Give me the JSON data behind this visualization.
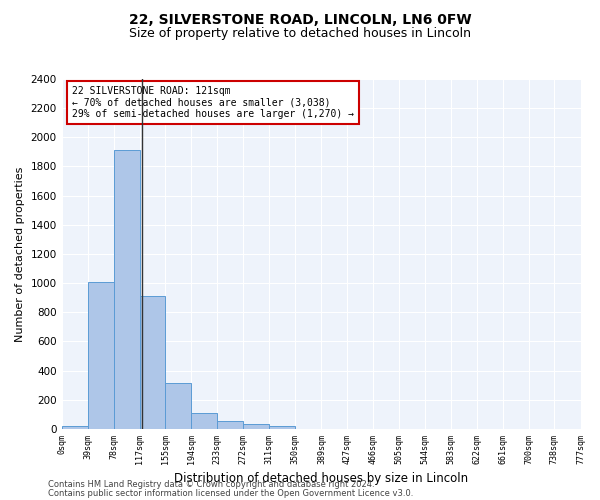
{
  "title1": "22, SILVERSTONE ROAD, LINCOLN, LN6 0FW",
  "title2": "Size of property relative to detached houses in Lincoln",
  "xlabel": "Distribution of detached houses by size in Lincoln",
  "ylabel": "Number of detached properties",
  "bar_edges": [
    0,
    39,
    78,
    117,
    155,
    194,
    233,
    272,
    311,
    350,
    389,
    427,
    466,
    505,
    544,
    583,
    622,
    661,
    700,
    738,
    777
  ],
  "bar_heights": [
    20,
    1010,
    1910,
    910,
    315,
    110,
    55,
    30,
    20,
    0,
    0,
    0,
    0,
    0,
    0,
    0,
    0,
    0,
    0,
    0
  ],
  "bar_color": "#aec6e8",
  "bar_edge_color": "#5b9bd5",
  "vline_x": 121,
  "vline_color": "#333333",
  "annotation_line1": "22 SILVERSTONE ROAD: 121sqm",
  "annotation_line2": "← 70% of detached houses are smaller (3,038)",
  "annotation_line3": "29% of semi-detached houses are larger (1,270) →",
  "annotation_box_color": "#cc0000",
  "ylim": [
    0,
    2400
  ],
  "yticks": [
    0,
    200,
    400,
    600,
    800,
    1000,
    1200,
    1400,
    1600,
    1800,
    2000,
    2200,
    2400
  ],
  "tick_labels": [
    "0sqm",
    "39sqm",
    "78sqm",
    "117sqm",
    "155sqm",
    "194sqm",
    "233sqm",
    "272sqm",
    "311sqm",
    "350sqm",
    "389sqm",
    "427sqm",
    "466sqm",
    "505sqm",
    "544sqm",
    "583sqm",
    "622sqm",
    "661sqm",
    "700sqm",
    "738sqm",
    "777sqm"
  ],
  "footnote1": "Contains HM Land Registry data © Crown copyright and database right 2024.",
  "footnote2": "Contains public sector information licensed under the Open Government Licence v3.0.",
  "bg_color": "#eef3fb",
  "grid_color": "#ffffff",
  "title1_fontsize": 10,
  "title2_fontsize": 9,
  "figsize": [
    6.0,
    5.0
  ],
  "dpi": 100
}
